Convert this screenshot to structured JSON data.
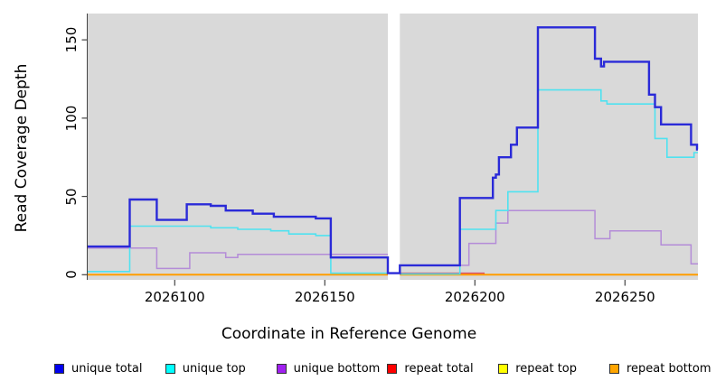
{
  "figure": {
    "xlabel": "Coordinate in Reference Genome",
    "ylabel": "Read Coverage Depth"
  },
  "chart_data": {
    "type": "line",
    "subtype": "step-after",
    "title": "",
    "xlabel": "Coordinate in Reference Genome",
    "ylabel": "Read Coverage Depth",
    "grid": false,
    "legend_position": "bottom",
    "panel_bg": "#d9d9d9",
    "axis_color": "#444444",
    "xlim": [
      2026071,
      2026274.3
    ],
    "ylim": [
      0,
      166.8
    ],
    "x_ticks": [
      2026100,
      2026150,
      2026200,
      2026250
    ],
    "x_tick_labels": [
      "2026100",
      "2026150",
      "2026200",
      "2026250"
    ],
    "y_ticks": [
      0,
      50,
      100,
      150
    ],
    "y_tick_labels": [
      "0",
      "50",
      "100",
      "150"
    ],
    "gap_x": [
      2026171,
      2026175
    ],
    "draw_order": [
      "repeat top",
      "repeat total",
      "repeat bottom",
      "unique bottom",
      "unique top",
      "unique total"
    ],
    "series": [
      {
        "name": "unique total",
        "color": "#0000ee",
        "line_color": "#2a2ad8",
        "width": 2.4,
        "crosses_gap": true,
        "steps": [
          [
            2026071,
            18
          ],
          [
            2026085,
            48
          ],
          [
            2026094,
            35
          ],
          [
            2026104,
            45
          ],
          [
            2026112,
            44
          ],
          [
            2026117,
            41
          ],
          [
            2026126,
            39
          ],
          [
            2026133,
            37
          ],
          [
            2026147,
            36
          ],
          [
            2026152,
            11
          ],
          [
            2026171,
            1
          ],
          [
            2026175,
            6
          ],
          [
            2026195,
            49
          ],
          [
            2026206,
            62
          ],
          [
            2026207,
            64
          ],
          [
            2026208,
            75
          ],
          [
            2026212,
            83
          ],
          [
            2026214,
            94
          ],
          [
            2026221,
            158
          ],
          [
            2026240,
            138
          ],
          [
            2026242,
            133
          ],
          [
            2026243,
            136
          ],
          [
            2026258,
            115
          ],
          [
            2026260,
            107
          ],
          [
            2026262,
            96
          ],
          [
            2026272,
            83
          ],
          [
            2026274,
            80
          ]
        ]
      },
      {
        "name": "unique top",
        "color": "#00ffff",
        "line_color": "#4fe2f0",
        "width": 1.6,
        "crosses_gap": false,
        "steps": [
          [
            2026071,
            2
          ],
          [
            2026085,
            31
          ],
          [
            2026112,
            30
          ],
          [
            2026121,
            29
          ],
          [
            2026132,
            28
          ],
          [
            2026138,
            26
          ],
          [
            2026147,
            25
          ],
          [
            2026152,
            1
          ],
          [
            2026175,
            0.5
          ],
          [
            2026195,
            29
          ],
          [
            2026207,
            41
          ],
          [
            2026211,
            53
          ],
          [
            2026221,
            118
          ],
          [
            2026242,
            111
          ],
          [
            2026244,
            109
          ],
          [
            2026260,
            87
          ],
          [
            2026264,
            75
          ],
          [
            2026273,
            78
          ]
        ]
      },
      {
        "name": "unique bottom",
        "color": "#a020f0",
        "line_color": "#b48cd8",
        "width": 1.5,
        "crosses_gap": false,
        "steps": [
          [
            2026071,
            17
          ],
          [
            2026094,
            4
          ],
          [
            2026105,
            14
          ],
          [
            2026117,
            11
          ],
          [
            2026121,
            13
          ],
          [
            2026171,
            0.5
          ],
          [
            2026175,
            6
          ],
          [
            2026198,
            20
          ],
          [
            2026207,
            33
          ],
          [
            2026211,
            41
          ],
          [
            2026240,
            23
          ],
          [
            2026245,
            28
          ],
          [
            2026262,
            19
          ],
          [
            2026272,
            7
          ]
        ]
      },
      {
        "name": "repeat total",
        "color": "#ff0000",
        "line_color": "#d84a64",
        "width": 1.5,
        "crosses_gap": false,
        "steps": [
          [
            2026071,
            0
          ],
          [
            2026175,
            1
          ],
          [
            2026203,
            0
          ]
        ]
      },
      {
        "name": "repeat top",
        "color": "#ffff00",
        "line_color": "#ffff00",
        "width": 1.4,
        "crosses_gap": false,
        "steps": [
          [
            2026071,
            0
          ]
        ]
      },
      {
        "name": "repeat bottom",
        "color": "#ffa500",
        "line_color": "#ff9d00",
        "width": 2,
        "crosses_gap": false,
        "steps": [
          [
            2026071,
            0
          ]
        ]
      }
    ]
  },
  "legend": {
    "items": [
      "unique total",
      "unique top",
      "unique bottom",
      "repeat total",
      "repeat top",
      "repeat bottom"
    ]
  }
}
